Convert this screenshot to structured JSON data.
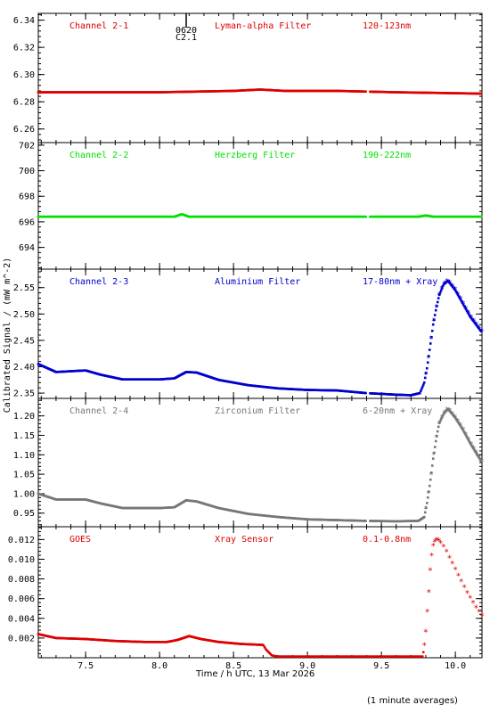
{
  "figure": {
    "ylabel": "Calibrated Signal / (mW m^-2)",
    "xlabel": "Time / h UTC, 13 Mar 2026",
    "footnote": "(1 minute averages)",
    "marker": {
      "line1": "0620",
      "line2": "C2.1",
      "x": 8.18
    }
  },
  "chart_data": [
    {
      "type": "scatter",
      "channel": "Channel 2-1",
      "filter": "Lyman-alpha Filter",
      "band": "120-123nm",
      "color": "#dd0000",
      "marker": "dot",
      "xlim": [
        7.18,
        10.18
      ],
      "ylim": [
        6.25,
        6.345
      ],
      "yticks": [
        6.26,
        6.28,
        6.3,
        6.32,
        6.34
      ],
      "ytick_labels": [
        "6.26",
        "6.28",
        "6.30",
        "6.32",
        "6.34"
      ],
      "gaps": [
        [
          9.4,
          9.42
        ]
      ],
      "points": [
        [
          7.18,
          6.287
        ],
        [
          7.5,
          6.287
        ],
        [
          8.0,
          6.287
        ],
        [
          8.5,
          6.288
        ],
        [
          8.68,
          6.289
        ],
        [
          8.85,
          6.288
        ],
        [
          9.2,
          6.288
        ],
        [
          9.6,
          6.287
        ],
        [
          10.18,
          6.286
        ]
      ]
    },
    {
      "type": "scatter",
      "channel": "Channel 2-2",
      "filter": "Herzberg Filter",
      "band": "190-222nm",
      "color": "#00e000",
      "marker": "dot",
      "xlim": [
        7.18,
        10.18
      ],
      "ylim": [
        692.3,
        702.2
      ],
      "yticks": [
        694,
        696,
        698,
        700,
        702
      ],
      "ytick_labels": [
        "694",
        "696",
        "698",
        "700",
        "702"
      ],
      "gaps": [
        [
          9.4,
          9.42
        ]
      ],
      "points": [
        [
          7.18,
          696.4
        ],
        [
          8.1,
          696.4
        ],
        [
          8.15,
          696.6
        ],
        [
          8.2,
          696.4
        ],
        [
          9.75,
          696.4
        ],
        [
          9.8,
          696.5
        ],
        [
          9.85,
          696.4
        ],
        [
          10.18,
          696.4
        ]
      ]
    },
    {
      "type": "scatter",
      "channel": "Channel 2-3",
      "filter": "Aluminium Filter",
      "band": "17-80nm + Xray",
      "color": "#0000cc",
      "marker": "dot",
      "xlim": [
        7.18,
        10.18
      ],
      "ylim": [
        2.34,
        2.585
      ],
      "yticks": [
        2.35,
        2.4,
        2.45,
        2.5,
        2.55
      ],
      "ytick_labels": [
        "2.35",
        "2.40",
        "2.45",
        "2.50",
        "2.55"
      ],
      "gaps": [
        [
          9.4,
          9.42
        ]
      ],
      "points": [
        [
          7.18,
          2.405
        ],
        [
          7.3,
          2.39
        ],
        [
          7.5,
          2.393
        ],
        [
          7.6,
          2.385
        ],
        [
          7.75,
          2.376
        ],
        [
          8.0,
          2.376
        ],
        [
          8.1,
          2.378
        ],
        [
          8.18,
          2.39
        ],
        [
          8.25,
          2.389
        ],
        [
          8.4,
          2.375
        ],
        [
          8.6,
          2.365
        ],
        [
          8.8,
          2.359
        ],
        [
          9.0,
          2.356
        ],
        [
          9.2,
          2.355
        ],
        [
          9.4,
          2.35
        ],
        [
          9.6,
          2.347
        ],
        [
          9.7,
          2.346
        ],
        [
          9.76,
          2.35
        ],
        [
          9.79,
          2.37
        ],
        [
          9.81,
          2.4
        ],
        [
          9.83,
          2.44
        ],
        [
          9.85,
          2.48
        ],
        [
          9.87,
          2.51
        ],
        [
          9.89,
          2.535
        ],
        [
          9.92,
          2.556
        ],
        [
          9.95,
          2.563
        ],
        [
          10.0,
          2.545
        ],
        [
          10.05,
          2.52
        ],
        [
          10.1,
          2.495
        ],
        [
          10.18,
          2.465
        ]
      ]
    },
    {
      "type": "scatter",
      "channel": "Channel 2-4",
      "filter": "Zirconium Filter",
      "band": "6-20nm + Xray",
      "color": "#777777",
      "marker": "dot",
      "xlim": [
        7.18,
        10.18
      ],
      "ylim": [
        0.915,
        1.245
      ],
      "yticks": [
        0.95,
        1.0,
        1.05,
        1.1,
        1.15,
        1.2
      ],
      "ytick_labels": [
        "0.95",
        "1.00",
        "1.05",
        "1.10",
        "1.15",
        "1.20"
      ],
      "gaps": [
        [
          9.4,
          9.42
        ]
      ],
      "points": [
        [
          7.18,
          1.0
        ],
        [
          7.3,
          0.985
        ],
        [
          7.5,
          0.985
        ],
        [
          7.6,
          0.975
        ],
        [
          7.75,
          0.963
        ],
        [
          8.0,
          0.963
        ],
        [
          8.1,
          0.965
        ],
        [
          8.18,
          0.983
        ],
        [
          8.25,
          0.98
        ],
        [
          8.4,
          0.963
        ],
        [
          8.6,
          0.948
        ],
        [
          8.8,
          0.94
        ],
        [
          9.0,
          0.934
        ],
        [
          9.2,
          0.932
        ],
        [
          9.4,
          0.93
        ],
        [
          9.6,
          0.929
        ],
        [
          9.75,
          0.93
        ],
        [
          9.79,
          0.94
        ],
        [
          9.81,
          0.98
        ],
        [
          9.83,
          1.03
        ],
        [
          9.85,
          1.09
        ],
        [
          9.87,
          1.14
        ],
        [
          9.89,
          1.18
        ],
        [
          9.92,
          1.205
        ],
        [
          9.95,
          1.218
        ],
        [
          10.0,
          1.195
        ],
        [
          10.05,
          1.165
        ],
        [
          10.1,
          1.13
        ],
        [
          10.18,
          1.08
        ]
      ]
    },
    {
      "type": "scatter",
      "channel": "GOES",
      "filter": "Xray Sensor",
      "band": "0.1-0.8nm",
      "color": "#dd0000",
      "marker": "dot",
      "xlim": [
        7.18,
        10.18
      ],
      "ylim": [
        0.0,
        0.0133
      ],
      "yticks": [
        0.002,
        0.004,
        0.006,
        0.008,
        0.01,
        0.012
      ],
      "ytick_labels": [
        "0.002",
        "0.004",
        "0.006",
        "0.008",
        "0.010",
        "0.012"
      ],
      "xticks": [
        7.5,
        8.0,
        8.5,
        9.0,
        9.5,
        10.0
      ],
      "xtick_labels": [
        "7.5",
        "8.0",
        "8.5",
        "9.0",
        "9.5",
        "10.0"
      ],
      "gaps": [],
      "points": [
        [
          7.18,
          0.0024
        ],
        [
          7.3,
          0.002
        ],
        [
          7.5,
          0.0019
        ],
        [
          7.7,
          0.0017
        ],
        [
          7.9,
          0.0016
        ],
        [
          8.05,
          0.0016
        ],
        [
          8.12,
          0.0018
        ],
        [
          8.2,
          0.0022
        ],
        [
          8.28,
          0.0019
        ],
        [
          8.4,
          0.0016
        ],
        [
          8.55,
          0.0014
        ],
        [
          8.7,
          0.0013
        ],
        [
          8.72,
          0.0008
        ],
        [
          8.76,
          0.0002
        ],
        [
          8.8,
          0.0001
        ],
        [
          9.0,
          0.0001
        ],
        [
          9.4,
          0.0001
        ],
        [
          9.7,
          0.0001
        ],
        [
          9.78,
          0.0001
        ],
        [
          9.79,
          0.0012
        ],
        [
          9.8,
          0.0028
        ],
        [
          9.81,
          0.0048
        ],
        [
          9.82,
          0.0068
        ],
        [
          9.83,
          0.0088
        ],
        [
          9.84,
          0.0105
        ],
        [
          9.86,
          0.0116
        ],
        [
          9.88,
          0.0119
        ],
        [
          9.9,
          0.0118
        ],
        [
          9.92,
          0.0113
        ],
        [
          9.95,
          0.0104
        ],
        [
          10.0,
          0.0088
        ],
        [
          10.05,
          0.0072
        ],
        [
          10.1,
          0.0058
        ],
        [
          10.18,
          0.0042
        ]
      ],
      "discrete": [
        [
          9.79,
          0.0012
        ],
        [
          9.8,
          0.0026
        ],
        [
          9.81,
          0.0046
        ],
        [
          9.82,
          0.0066
        ],
        [
          9.83,
          0.0088
        ],
        [
          9.84,
          0.0103
        ],
        [
          9.85,
          0.0113
        ],
        [
          9.86,
          0.0117
        ],
        [
          9.87,
          0.0119
        ],
        [
          9.88,
          0.0119
        ],
        [
          9.89,
          0.0118
        ],
        [
          9.9,
          0.0116
        ],
        [
          9.92,
          0.0112
        ],
        [
          9.94,
          0.0107
        ],
        [
          9.96,
          0.0101
        ],
        [
          9.98,
          0.0095
        ],
        [
          10.0,
          0.0089
        ],
        [
          10.02,
          0.0083
        ],
        [
          10.04,
          0.0077
        ],
        [
          10.06,
          0.0071
        ],
        [
          10.08,
          0.0065
        ],
        [
          10.1,
          0.006
        ],
        [
          10.12,
          0.0055
        ],
        [
          10.14,
          0.005
        ],
        [
          10.16,
          0.0046
        ],
        [
          10.18,
          0.0042
        ]
      ]
    }
  ]
}
